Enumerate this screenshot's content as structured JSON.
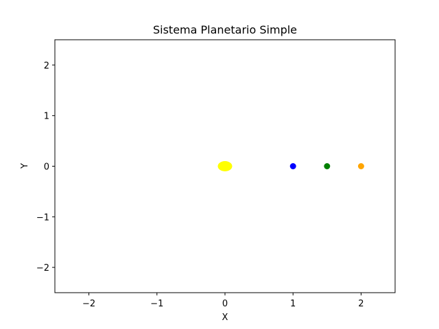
{
  "chart_data": {
    "type": "scatter",
    "title": "Sistema Planetario Simple",
    "xlabel": "X",
    "ylabel": "Y",
    "xlim": [
      -2.5,
      2.5
    ],
    "ylim": [
      -2.5,
      2.5
    ],
    "xticks": [
      -2,
      -1,
      0,
      1,
      2
    ],
    "yticks": [
      -2,
      -1,
      0,
      1,
      2
    ],
    "xtick_labels": [
      "−2",
      "−1",
      "0",
      "1",
      "2"
    ],
    "ytick_labels": [
      "−2",
      "−1",
      "0",
      "1",
      "2"
    ],
    "grid": false,
    "legend": "none",
    "points": [
      {
        "x": 0,
        "y": 0,
        "color": "#ffff00",
        "size": "large"
      },
      {
        "x": 1,
        "y": 0,
        "color": "#0000ff",
        "size": "small"
      },
      {
        "x": 1.5,
        "y": 0,
        "color": "#008000",
        "size": "small"
      },
      {
        "x": 2,
        "y": 0,
        "color": "#ffa500",
        "size": "small"
      }
    ]
  }
}
